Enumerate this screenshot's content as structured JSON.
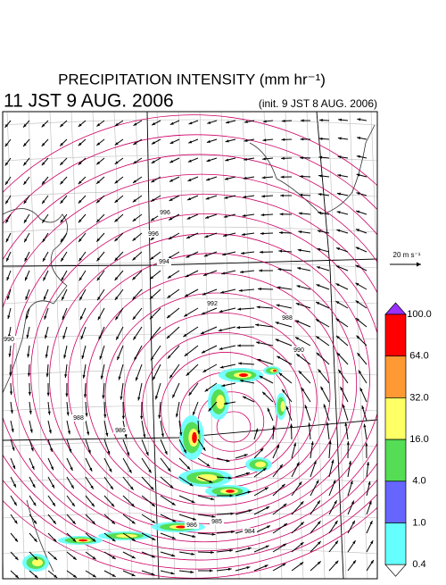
{
  "title": "PRECIPITATION INTENSITY (mm hr⁻¹)",
  "valid_time": "11 JST 9 AUG. 2006",
  "init_time": "(init. 9 JST 8 AUG. 2006)",
  "vector_scale": {
    "label": "20 m s⁻¹"
  },
  "colorbar": {
    "labels": [
      "100.0",
      "64.0",
      "32.0",
      "16.0",
      "4.0",
      "1.0",
      "0.4"
    ],
    "colors": [
      "#9b30ff",
      "#ff0000",
      "#ff9933",
      "#ffff66",
      "#55dd55",
      "#6666ff",
      "#66ffff",
      "#ffffff"
    ]
  },
  "isobar_labels": [
    "996",
    "996",
    "994",
    "992",
    "990",
    "988",
    "990",
    "988",
    "986",
    "986",
    "985",
    "984"
  ]
}
